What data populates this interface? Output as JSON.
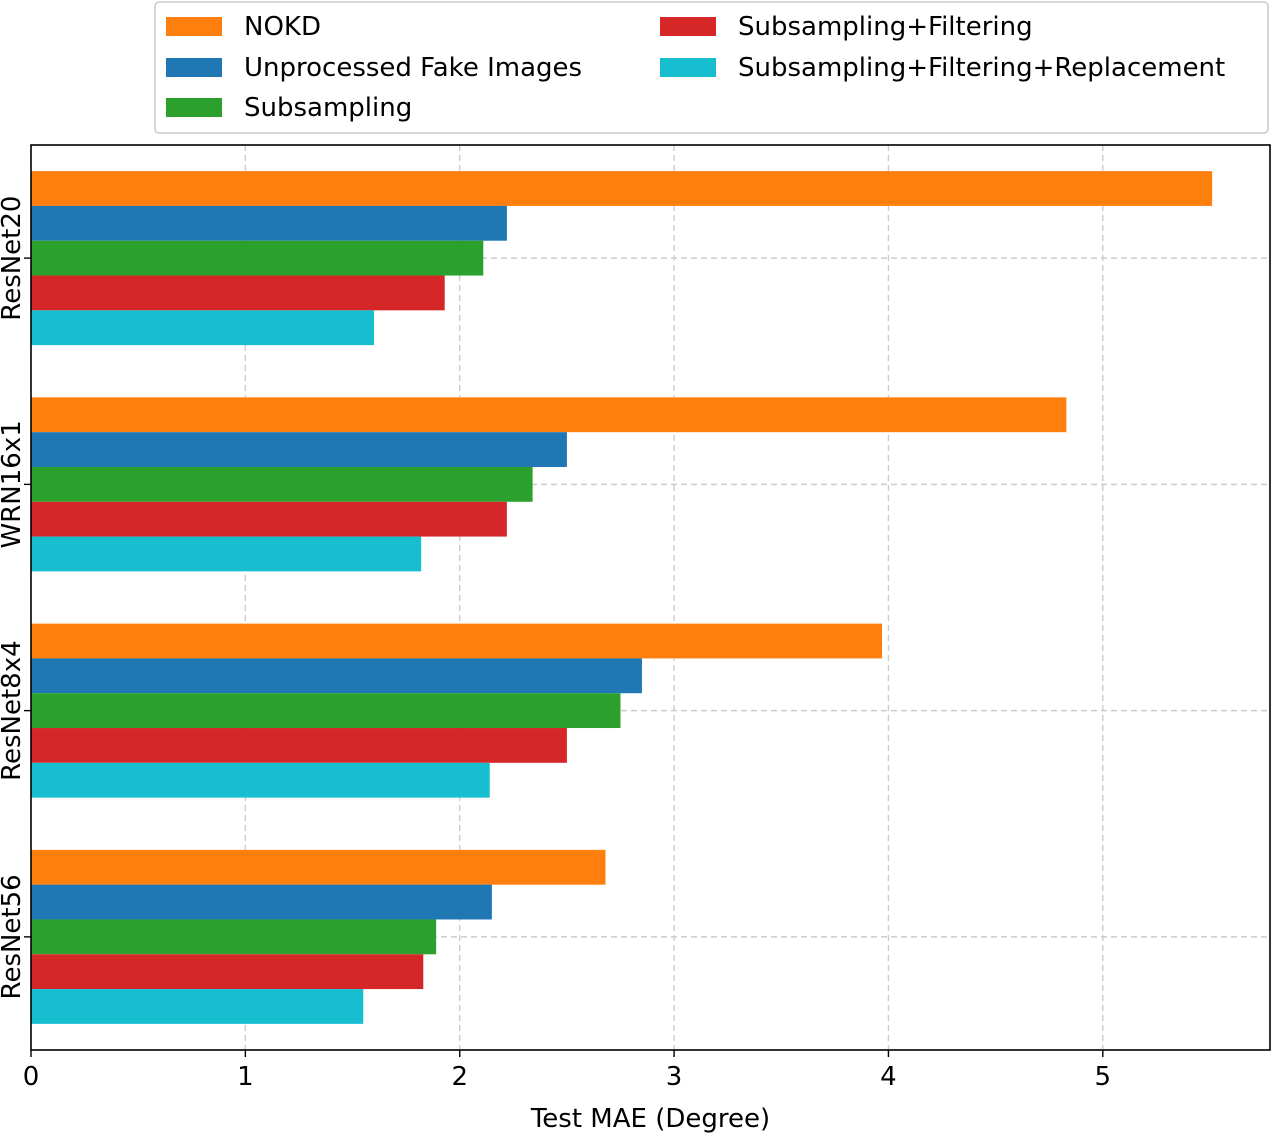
{
  "chart_data": {
    "type": "bar",
    "orientation": "horizontal",
    "categories": [
      "ResNet20",
      "WRN16x1",
      "ResNet8x4",
      "ResNet56"
    ],
    "series": [
      {
        "name": "NOKD",
        "color": "#ff7f0e",
        "values": [
          5.51,
          4.83,
          3.97,
          2.68
        ]
      },
      {
        "name": "Unprocessed Fake Images",
        "color": "#1f77b4",
        "values": [
          2.22,
          2.5,
          2.85,
          2.15
        ]
      },
      {
        "name": "Subsampling",
        "color": "#2ca02c",
        "values": [
          2.11,
          2.34,
          2.75,
          1.89
        ]
      },
      {
        "name": "Subsampling+Filtering",
        "color": "#d62728",
        "values": [
          1.93,
          2.22,
          2.5,
          1.83
        ]
      },
      {
        "name": "Subsampling+Filtering+Replacement",
        "color": "#17becf",
        "values": [
          1.6,
          1.82,
          2.14,
          1.55
        ]
      }
    ],
    "xlabel": "Test MAE (Degree)",
    "ylabel": "",
    "title": "",
    "xlim": [
      0,
      5.78
    ],
    "xticks": [
      "0",
      "1",
      "2",
      "3",
      "4",
      "5"
    ],
    "grid": true,
    "grid_style": "dashed",
    "legend_placement": "top, outside plot, two columns"
  }
}
